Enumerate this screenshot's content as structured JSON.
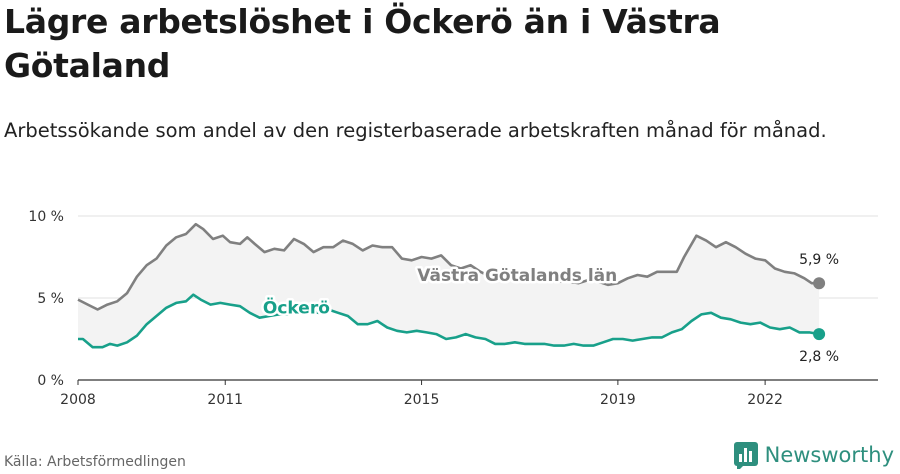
{
  "title": "Lägre arbetslöshet i Öckerö än i Västra Götaland",
  "subtitle": "Arbetssökande som andel av den registerbaserade arbetskraften månad för månad.",
  "source": "Källa: Arbetsförmedlingen",
  "brand": "Newsworthy",
  "colors": {
    "region": "#808080",
    "municipality": "#18a08a",
    "band": "#f3f3f3",
    "grid": "#e0e0e0",
    "brand": "#2e8f7e"
  },
  "chart_data": {
    "type": "line",
    "ylim": [
      0,
      10
    ],
    "xlim": [
      2008,
      2024.3
    ],
    "y_ticks": [
      {
        "value": 0,
        "label": "0 %"
      },
      {
        "value": 5,
        "label": "5 %"
      },
      {
        "value": 10,
        "label": "10 %"
      }
    ],
    "x_ticks": [
      {
        "value": 2008,
        "label": "2008"
      },
      {
        "value": 2011,
        "label": "2011"
      },
      {
        "value": 2015,
        "label": "2015"
      },
      {
        "value": 2019,
        "label": "2019"
      },
      {
        "value": 2022,
        "label": "2022"
      }
    ],
    "grid": true,
    "fill_between": true,
    "series": [
      {
        "name": "Västra Götalands län",
        "end_label": "5,9 %",
        "points": [
          [
            2008.0,
            4.9
          ],
          [
            2008.2,
            4.6
          ],
          [
            2008.4,
            4.3
          ],
          [
            2008.6,
            4.6
          ],
          [
            2008.8,
            4.8
          ],
          [
            2009.0,
            5.3
          ],
          [
            2009.2,
            6.3
          ],
          [
            2009.4,
            7.0
          ],
          [
            2009.6,
            7.4
          ],
          [
            2009.8,
            8.2
          ],
          [
            2010.0,
            8.7
          ],
          [
            2010.2,
            8.9
          ],
          [
            2010.4,
            9.5
          ],
          [
            2010.55,
            9.2
          ],
          [
            2010.75,
            8.6
          ],
          [
            2010.95,
            8.8
          ],
          [
            2011.1,
            8.4
          ],
          [
            2011.3,
            8.3
          ],
          [
            2011.45,
            8.7
          ],
          [
            2011.6,
            8.3
          ],
          [
            2011.8,
            7.8
          ],
          [
            2012.0,
            8.0
          ],
          [
            2012.2,
            7.9
          ],
          [
            2012.4,
            8.6
          ],
          [
            2012.6,
            8.3
          ],
          [
            2012.8,
            7.8
          ],
          [
            2013.0,
            8.1
          ],
          [
            2013.2,
            8.1
          ],
          [
            2013.4,
            8.5
          ],
          [
            2013.6,
            8.3
          ],
          [
            2013.8,
            7.9
          ],
          [
            2014.0,
            8.2
          ],
          [
            2014.2,
            8.1
          ],
          [
            2014.4,
            8.1
          ],
          [
            2014.6,
            7.4
          ],
          [
            2014.8,
            7.3
          ],
          [
            2015.0,
            7.5
          ],
          [
            2015.2,
            7.4
          ],
          [
            2015.4,
            7.6
          ],
          [
            2015.6,
            7.0
          ],
          [
            2015.8,
            6.8
          ],
          [
            2016.0,
            7.0
          ],
          [
            2016.2,
            6.6
          ],
          [
            2016.4,
            6.3
          ],
          [
            2016.6,
            6.5
          ],
          [
            2016.8,
            6.3
          ],
          [
            2017.0,
            6.3
          ],
          [
            2017.2,
            6.1
          ],
          [
            2017.4,
            6.1
          ],
          [
            2017.6,
            6.0
          ],
          [
            2017.8,
            6.0
          ],
          [
            2018.0,
            6.0
          ],
          [
            2018.2,
            5.9
          ],
          [
            2018.4,
            6.1
          ],
          [
            2018.6,
            6.0
          ],
          [
            2018.8,
            5.8
          ],
          [
            2019.0,
            5.9
          ],
          [
            2019.2,
            6.2
          ],
          [
            2019.4,
            6.4
          ],
          [
            2019.6,
            6.3
          ],
          [
            2019.8,
            6.6
          ],
          [
            2020.0,
            6.6
          ],
          [
            2020.2,
            6.6
          ],
          [
            2020.35,
            7.5
          ],
          [
            2020.6,
            8.8
          ],
          [
            2020.8,
            8.5
          ],
          [
            2021.0,
            8.1
          ],
          [
            2021.2,
            8.4
          ],
          [
            2021.4,
            8.1
          ],
          [
            2021.6,
            7.7
          ],
          [
            2021.8,
            7.4
          ],
          [
            2022.0,
            7.3
          ],
          [
            2022.2,
            6.8
          ],
          [
            2022.4,
            6.6
          ],
          [
            2022.6,
            6.5
          ],
          [
            2022.8,
            6.2
          ],
          [
            2022.95,
            5.9
          ],
          [
            2023.1,
            5.9
          ]
        ]
      },
      {
        "name": "Öckerö",
        "end_label": "2,8 %",
        "points": [
          [
            2008.0,
            2.5
          ],
          [
            2008.1,
            2.5
          ],
          [
            2008.3,
            2.0
          ],
          [
            2008.5,
            2.0
          ],
          [
            2008.65,
            2.2
          ],
          [
            2008.8,
            2.1
          ],
          [
            2009.0,
            2.3
          ],
          [
            2009.2,
            2.7
          ],
          [
            2009.4,
            3.4
          ],
          [
            2009.6,
            3.9
          ],
          [
            2009.8,
            4.4
          ],
          [
            2010.0,
            4.7
          ],
          [
            2010.2,
            4.8
          ],
          [
            2010.35,
            5.2
          ],
          [
            2010.5,
            4.9
          ],
          [
            2010.7,
            4.6
          ],
          [
            2010.9,
            4.7
          ],
          [
            2011.1,
            4.6
          ],
          [
            2011.3,
            4.5
          ],
          [
            2011.5,
            4.1
          ],
          [
            2011.7,
            3.8
          ],
          [
            2011.9,
            3.9
          ],
          [
            2012.1,
            4.0
          ],
          [
            2012.3,
            4.0
          ],
          [
            2012.5,
            4.1
          ],
          [
            2012.7,
            4.2
          ],
          [
            2012.9,
            4.1
          ],
          [
            2013.1,
            4.3
          ],
          [
            2013.3,
            4.1
          ],
          [
            2013.5,
            3.9
          ],
          [
            2013.7,
            3.4
          ],
          [
            2013.9,
            3.4
          ],
          [
            2014.1,
            3.6
          ],
          [
            2014.3,
            3.2
          ],
          [
            2014.5,
            3.0
          ],
          [
            2014.7,
            2.9
          ],
          [
            2014.9,
            3.0
          ],
          [
            2015.1,
            2.9
          ],
          [
            2015.3,
            2.8
          ],
          [
            2015.5,
            2.5
          ],
          [
            2015.7,
            2.6
          ],
          [
            2015.9,
            2.8
          ],
          [
            2016.1,
            2.6
          ],
          [
            2016.3,
            2.5
          ],
          [
            2016.5,
            2.2
          ],
          [
            2016.7,
            2.2
          ],
          [
            2016.9,
            2.3
          ],
          [
            2017.1,
            2.2
          ],
          [
            2017.3,
            2.2
          ],
          [
            2017.5,
            2.2
          ],
          [
            2017.7,
            2.1
          ],
          [
            2017.9,
            2.1
          ],
          [
            2018.1,
            2.2
          ],
          [
            2018.3,
            2.1
          ],
          [
            2018.5,
            2.1
          ],
          [
            2018.7,
            2.3
          ],
          [
            2018.9,
            2.5
          ],
          [
            2019.1,
            2.5
          ],
          [
            2019.3,
            2.4
          ],
          [
            2019.5,
            2.5
          ],
          [
            2019.7,
            2.6
          ],
          [
            2019.9,
            2.6
          ],
          [
            2020.1,
            2.9
          ],
          [
            2020.3,
            3.1
          ],
          [
            2020.5,
            3.6
          ],
          [
            2020.7,
            4.0
          ],
          [
            2020.9,
            4.1
          ],
          [
            2021.1,
            3.8
          ],
          [
            2021.3,
            3.7
          ],
          [
            2021.5,
            3.5
          ],
          [
            2021.7,
            3.4
          ],
          [
            2021.9,
            3.5
          ],
          [
            2022.1,
            3.2
          ],
          [
            2022.3,
            3.1
          ],
          [
            2022.5,
            3.2
          ],
          [
            2022.7,
            2.9
          ],
          [
            2022.9,
            2.9
          ],
          [
            2023.1,
            2.8
          ]
        ]
      }
    ]
  }
}
